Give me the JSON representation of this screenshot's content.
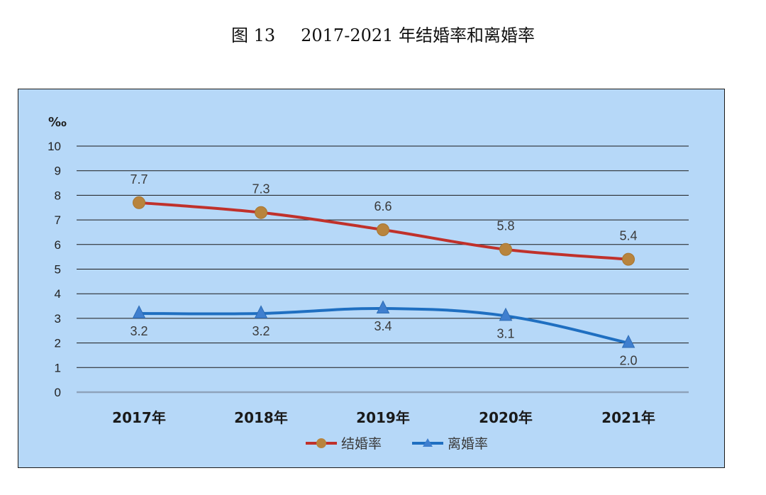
{
  "figure": {
    "number": "图 13",
    "caption": "2017-2021 年结婚率和离婚率"
  },
  "colors": {
    "background": "#b6d8f8",
    "marriage_line": "#c0312b",
    "marriage_marker": "#b8843d",
    "divorce_line": "#1f6fc1",
    "divorce_marker": "#3f7fcf",
    "gridline": "#1a1a1a",
    "baseline": "#8ea3bb"
  },
  "chart_data": {
    "type": "line",
    "title": "2017-2021 年结婚率和离婚率",
    "ylabel": "‰",
    "xlabel": "",
    "ylim": [
      0,
      10
    ],
    "yticks": [
      "0",
      "1",
      "2",
      "3",
      "4",
      "5",
      "6",
      "7",
      "8",
      "9",
      "10"
    ],
    "categories": [
      "2017年",
      "2018年",
      "2019年",
      "2020年",
      "2021年"
    ],
    "series": [
      {
        "name": "结婚率",
        "marker": "circle",
        "values": [
          7.7,
          7.3,
          6.6,
          5.8,
          5.4
        ],
        "labels": [
          "7.7",
          "7.3",
          "6.6",
          "5.8",
          "5.4"
        ],
        "label_position": "above"
      },
      {
        "name": "离婚率",
        "marker": "triangle",
        "values": [
          3.2,
          3.2,
          3.4,
          3.1,
          2.0
        ],
        "labels": [
          "3.2",
          "3.2",
          "3.4",
          "3.1",
          "2.0"
        ],
        "label_position": "below"
      }
    ],
    "legend_position": "bottom-center",
    "grid": true
  }
}
